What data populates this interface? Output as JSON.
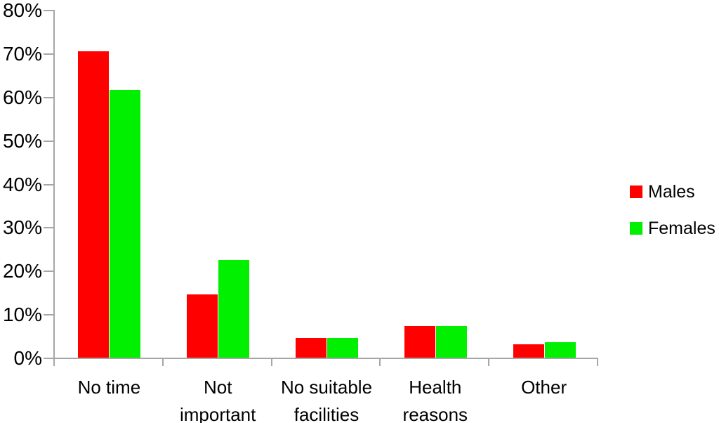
{
  "chart_data": {
    "type": "bar",
    "title": "",
    "xlabel": "",
    "ylabel": "",
    "categories": [
      "No time",
      "Not important",
      "No suitable facilities",
      "Health reasons",
      "Other"
    ],
    "category_label_lines": [
      [
        "No time"
      ],
      [
        "Not",
        "important"
      ],
      [
        "No suitable",
        "facilities"
      ],
      [
        "Health",
        "reasons"
      ],
      [
        "Other"
      ]
    ],
    "series": [
      {
        "name": "Males",
        "color": "#ff0000",
        "values": [
          70.5,
          14.5,
          4.5,
          7.3,
          3.1
        ]
      },
      {
        "name": "Females",
        "color": "#00f000",
        "values": [
          61.5,
          22.5,
          4.5,
          7.3,
          3.6
        ]
      }
    ],
    "ylim": [
      0,
      80
    ],
    "y_tick_step": 10,
    "y_tick_labels": [
      "0%",
      "10%",
      "20%",
      "30%",
      "40%",
      "50%",
      "60%",
      "70%",
      "80%"
    ],
    "grid": false,
    "legend_position": "right",
    "axis_color": "#a6a6a6",
    "text_color": "#000000",
    "background_color": "#ffffff"
  }
}
